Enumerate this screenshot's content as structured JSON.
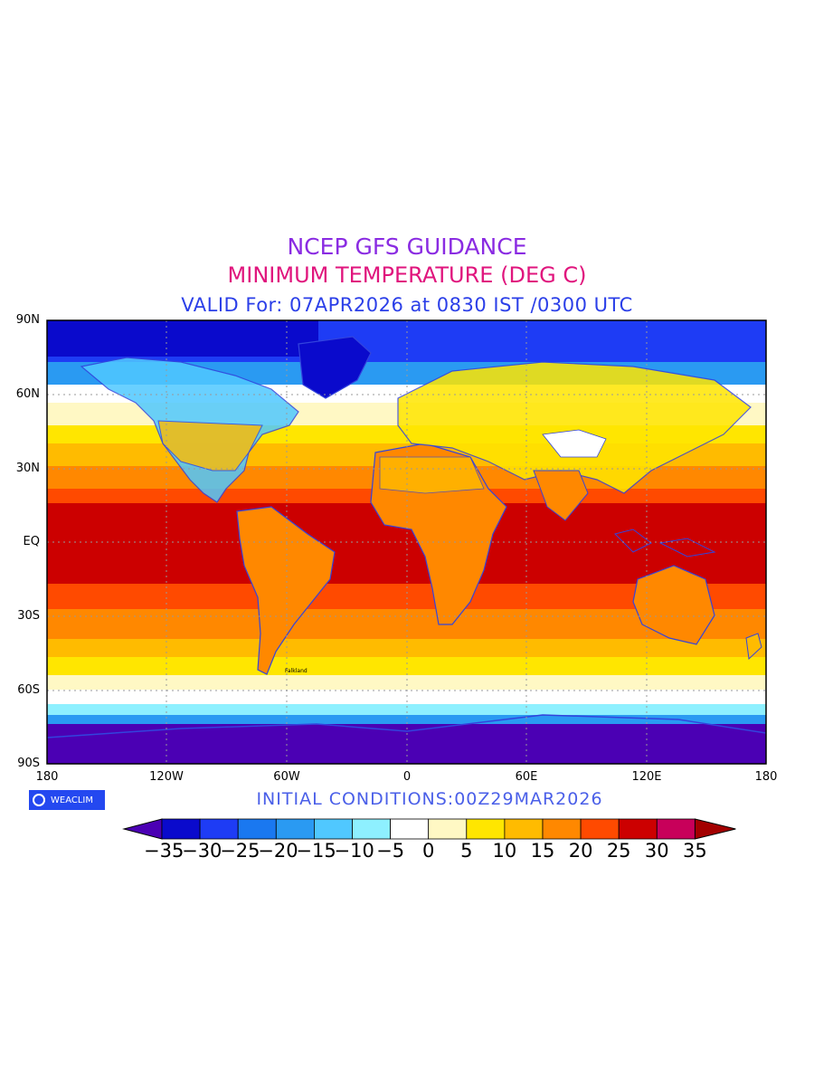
{
  "titles": {
    "line1": "NCEP GFS GUIDANCE",
    "line2": "MINIMUM TEMPERATURE (DEG C)",
    "line3": "VALID For: 07APR2026 at 0830 IST /0300 UTC"
  },
  "initial_conditions": "INITIAL  CONDITIONS:00Z29MAR2026",
  "logo_text": "WEACLIM",
  "lat_labels": [
    "90N",
    "60N",
    "30N",
    "EQ",
    "30S",
    "60S",
    "90S"
  ],
  "lon_labels": [
    "180",
    "120W",
    "60W",
    "0",
    "60E",
    "120E",
    "180"
  ],
  "colorbar": {
    "labels": [
      "−35",
      "−30",
      "−25",
      "−20",
      "−15",
      "−10",
      "−5",
      "0",
      "5",
      "10",
      "15",
      "20",
      "25",
      "30",
      "35"
    ],
    "colors": [
      "#0a0acc",
      "#1e3cf5",
      "#1a78f0",
      "#2a9af2",
      "#50c8ff",
      "#8ef0ff",
      "#ffffff",
      "#fff8c4",
      "#ffe600",
      "#ffbb00",
      "#ff8800",
      "#ff4a00",
      "#cc0000",
      "#c8005a"
    ],
    "under_color": "#4b00b4",
    "over_color": "#a30000"
  },
  "map_place_label": "Falkland"
}
